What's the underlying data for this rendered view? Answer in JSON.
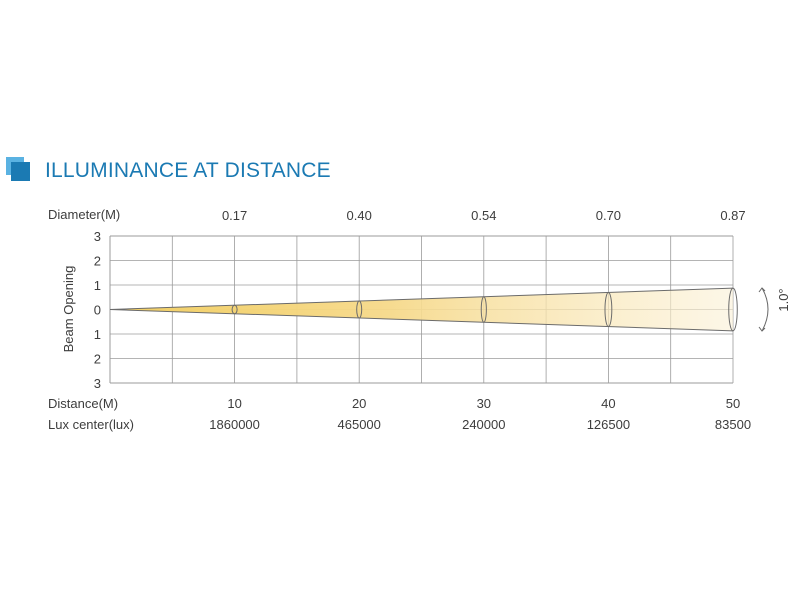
{
  "header": {
    "title": "ILLUMINANCE AT DISTANCE",
    "icon": "square-icon",
    "accent_color": "#1b7ab3",
    "accent_light": "#5ab2e2"
  },
  "chart_data": {
    "type": "line",
    "title": "ILLUMINANCE AT DISTANCE",
    "ylabel": "Beam Opening",
    "y_ticks": [
      "3",
      "2",
      "1",
      "0",
      "1",
      "2",
      "3"
    ],
    "ylim": [
      -3,
      3
    ],
    "xlim": [
      0,
      50
    ],
    "grid": true,
    "x_labels_distance": "Distance(M)",
    "x_labels_lux": "Lux center(lux)",
    "x_labels_diameter": "Diameter(M)",
    "rows": {
      "distance": [
        10,
        20,
        30,
        40,
        50
      ],
      "lux": [
        "1860000",
        "465000",
        "240000",
        "126500",
        "83500"
      ],
      "diameter": [
        "0.17",
        "0.40",
        "0.54",
        "0.70",
        "0.87"
      ]
    },
    "beam_angle_label": "1.0°",
    "beam_half_height_at_max": 0.87,
    "beam_color": "#f2cf63",
    "grid_color": "#9b9b9b"
  }
}
